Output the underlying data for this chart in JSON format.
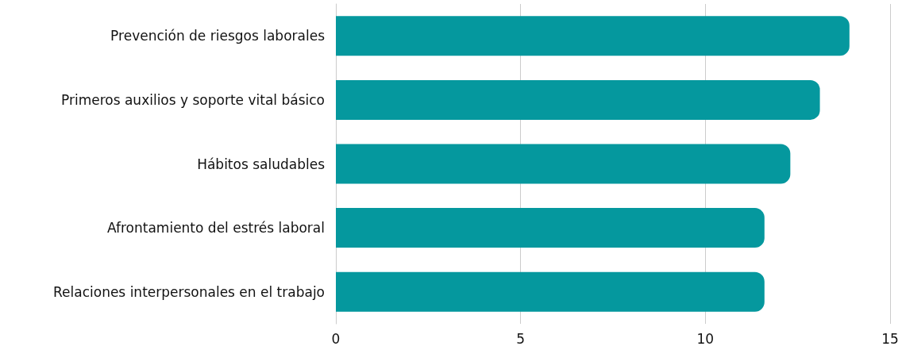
{
  "chart_data": {
    "type": "bar",
    "orientation": "horizontal",
    "categories": [
      "Prevención de riesgos laborales",
      "Primeros auxilios y soporte vital básico",
      "Hábitos saludables",
      "Afrontamiento del estrés laboral",
      "Relaciones interpersonales en el trabajo"
    ],
    "values": [
      13.9,
      13.1,
      12.3,
      11.6,
      11.6
    ],
    "color": "#05989e",
    "xlim": [
      0,
      15
    ],
    "xticks": [
      0,
      5,
      10,
      15
    ],
    "grid": "x"
  }
}
